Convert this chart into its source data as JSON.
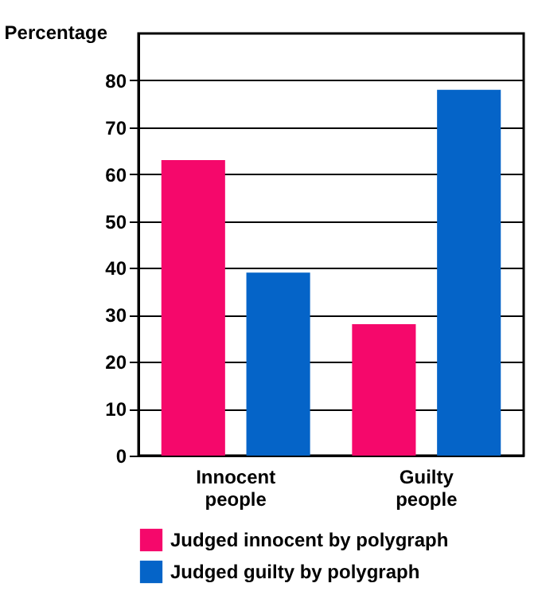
{
  "chart_data": {
    "type": "bar",
    "ylabel": "Percentage",
    "categories": [
      "Innocent people",
      "Guilty people"
    ],
    "series": [
      {
        "name": "Judged innocent by polygraph",
        "color": "#f5086b",
        "values": [
          63,
          28
        ]
      },
      {
        "name": "Judged guilty by polygraph",
        "color": "#0564c8",
        "values": [
          39,
          78
        ]
      }
    ],
    "ylim": [
      0,
      90
    ],
    "yticks": [
      0,
      10,
      20,
      30,
      40,
      50,
      60,
      70,
      80
    ],
    "grid": "y",
    "legend": "bottom"
  }
}
